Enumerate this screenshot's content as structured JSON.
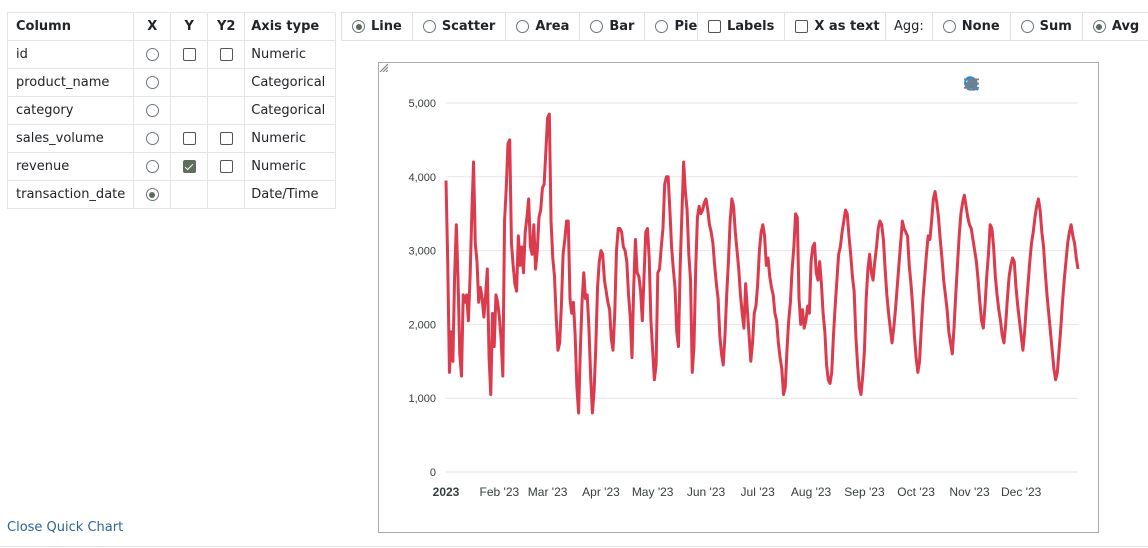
{
  "columns_table": {
    "headers": {
      "column": "Column",
      "x": "X",
      "y": "Y",
      "y2": "Y2",
      "axis_type": "Axis type"
    },
    "rows": [
      {
        "name": "id",
        "x": false,
        "y_box": true,
        "y": false,
        "y2_box": true,
        "y2": false,
        "type": "Numeric"
      },
      {
        "name": "product_name",
        "x": false,
        "y_box": false,
        "y": false,
        "y2_box": false,
        "y2": false,
        "type": "Categorical"
      },
      {
        "name": "category",
        "x": false,
        "y_box": false,
        "y": false,
        "y2_box": false,
        "y2": false,
        "type": "Categorical"
      },
      {
        "name": "sales_volume",
        "x": false,
        "y_box": true,
        "y": false,
        "y2_box": true,
        "y2": false,
        "type": "Numeric"
      },
      {
        "name": "revenue",
        "x": false,
        "y_box": true,
        "y": true,
        "y2_box": true,
        "y2": false,
        "type": "Numeric"
      },
      {
        "name": "transaction_date",
        "x": true,
        "y_box": false,
        "y": false,
        "y2_box": false,
        "y2": false,
        "type": "Date/Time"
      }
    ]
  },
  "chart_types": {
    "options": [
      {
        "label": "Line",
        "selected": true
      },
      {
        "label": "Scatter",
        "selected": false
      },
      {
        "label": "Area",
        "selected": false
      },
      {
        "label": "Bar",
        "selected": false
      },
      {
        "label": "Pie",
        "selected": false
      }
    ]
  },
  "display_options": {
    "labels": {
      "label": "Labels",
      "checked": false
    },
    "x_as_text": {
      "label": "X as text",
      "checked": false
    }
  },
  "aggregation": {
    "label": "Agg:",
    "options": [
      {
        "label": "None",
        "selected": false
      },
      {
        "label": "Sum",
        "selected": false
      },
      {
        "label": "Avg",
        "selected": true
      }
    ]
  },
  "toolbar_icons": [
    "zoom-in-icon",
    "zoom-out-icon",
    "zoom-selection-icon",
    "pan-hand-icon",
    "reset-home-icon",
    "menu-icon"
  ],
  "close_link": "Close Quick Chart",
  "chart_data": {
    "type": "line",
    "series": [
      {
        "values": [
          3950,
          2850,
          1350,
          1900,
          1500,
          2650,
          3350,
          2600,
          1600,
          1300,
          2400,
          2300,
          2400,
          2050,
          2650,
          3500,
          4200,
          3100,
          2850,
          2300,
          2500,
          2350,
          2100,
          2400,
          2750,
          1550,
          1050,
          2150,
          1700,
          2400,
          2300,
          2100,
          1800,
          1300,
          3400,
          3850,
          4450,
          4500,
          3100,
          2800,
          2550,
          2450,
          3200,
          2800,
          3050,
          2700,
          3250,
          3450,
          3700,
          3050,
          2950,
          3350,
          2750,
          3000,
          3450,
          3550,
          3850,
          3900,
          4350,
          4800,
          4850,
          3400,
          2900,
          2650,
          2100,
          1650,
          1750,
          2250,
          2950,
          3150,
          3400,
          3400,
          2350,
          2150,
          2300,
          1850,
          1150,
          800,
          1650,
          2300,
          2700,
          2350,
          2400,
          1950,
          1300,
          800,
          1100,
          1700,
          2500,
          2850,
          3000,
          2950,
          2600,
          2450,
          2300,
          2200,
          1800,
          1650,
          2150,
          3000,
          3300,
          3300,
          3250,
          3050,
          3000,
          2850,
          2400,
          2100,
          1550,
          2500,
          3150,
          2700,
          2650,
          2450,
          2050,
          2650,
          3250,
          3300,
          2900,
          2050,
          1650,
          1250,
          1450,
          2700,
          2750,
          3050,
          3300,
          3900,
          4000,
          4000,
          3550,
          3050,
          2750,
          2500,
          1900,
          1700,
          2800,
          3500,
          4200,
          3800,
          3550,
          2950,
          2600,
          1350,
          1700,
          2750,
          3450,
          3600,
          3500,
          3550,
          3650,
          3700,
          3550,
          3350,
          3250,
          3100,
          2800,
          2550,
          2350,
          1850,
          1600,
          1450,
          1850,
          2400,
          2850,
          3400,
          3700,
          3600,
          3250,
          3000,
          2750,
          2400,
          2150,
          1950,
          2550,
          2200,
          1850,
          1500,
          1750,
          2150,
          2250,
          2550,
          3000,
          3250,
          3350,
          3200,
          2800,
          2900,
          2650,
          2500,
          2400,
          2150,
          2050,
          1750,
          1550,
          1400,
          1050,
          1150,
          1650,
          2050,
          2300,
          2750,
          3050,
          3500,
          3450,
          2350,
          2000,
          2200,
          1950,
          2050,
          2250,
          2150,
          2850,
          3050,
          3100,
          2700,
          2600,
          2850,
          2550,
          2150,
          1900,
          1450,
          1250,
          1200,
          1350,
          1850,
          2250,
          2600,
          2950,
          3050,
          3250,
          3400,
          3550,
          3500,
          3200,
          2950,
          2650,
          2450,
          1850,
          1450,
          1150,
          1050,
          1300,
          1650,
          2350,
          2750,
          2950,
          2700,
          2600,
          2850,
          3050,
          3300,
          3400,
          3350,
          3150,
          2750,
          2400,
          2150,
          1950,
          1750,
          1950,
          2200,
          2500,
          2800,
          3100,
          3400,
          3300,
          3250,
          3200,
          2800,
          2550,
          2250,
          1850,
          1550,
          1350,
          1500,
          1950,
          2350,
          2650,
          2950,
          3200,
          3150,
          3400,
          3700,
          3800,
          3650,
          3450,
          3150,
          2900,
          2600,
          2400,
          2200,
          1900,
          1750,
          1600,
          1950,
          2400,
          2800,
          3200,
          3500,
          3650,
          3750,
          3600,
          3450,
          3350,
          3300,
          3150,
          3000,
          2850,
          2600,
          2300,
          2050,
          1950,
          2250,
          2650,
          2950,
          3350,
          3300,
          3050,
          2650,
          2400,
          2200,
          2050,
          1850,
          1750,
          2000,
          2350,
          2650,
          2800,
          2900,
          2850,
          2500,
          2250,
          2050,
          1850,
          1650,
          1900,
          2250,
          2550,
          2850,
          3100,
          3250,
          3450,
          3600,
          3700,
          3550,
          3250,
          3050,
          2700,
          2400,
          2150,
          1900,
          1650,
          1400,
          1250,
          1350,
          1650,
          1950,
          2300,
          2600,
          2850,
          3100,
          3250,
          3350,
          3200,
          3100,
          2900,
          2750
        ]
      }
    ],
    "x_start": "2023-01-01",
    "x_tick_labels": [
      "2023",
      "Feb '23",
      "Mar '23",
      "Apr '23",
      "May '23",
      "Jun '23",
      "Jul '23",
      "Aug '23",
      "Sep '23",
      "Oct '23",
      "Nov '23",
      "Dec '23"
    ],
    "y_tick_labels": [
      "0",
      "1,000",
      "2,000",
      "3,000",
      "4,000",
      "5,000"
    ],
    "ylim": [
      0,
      5000
    ],
    "grid": true,
    "color": "#dc3a4d",
    "legend": false
  }
}
